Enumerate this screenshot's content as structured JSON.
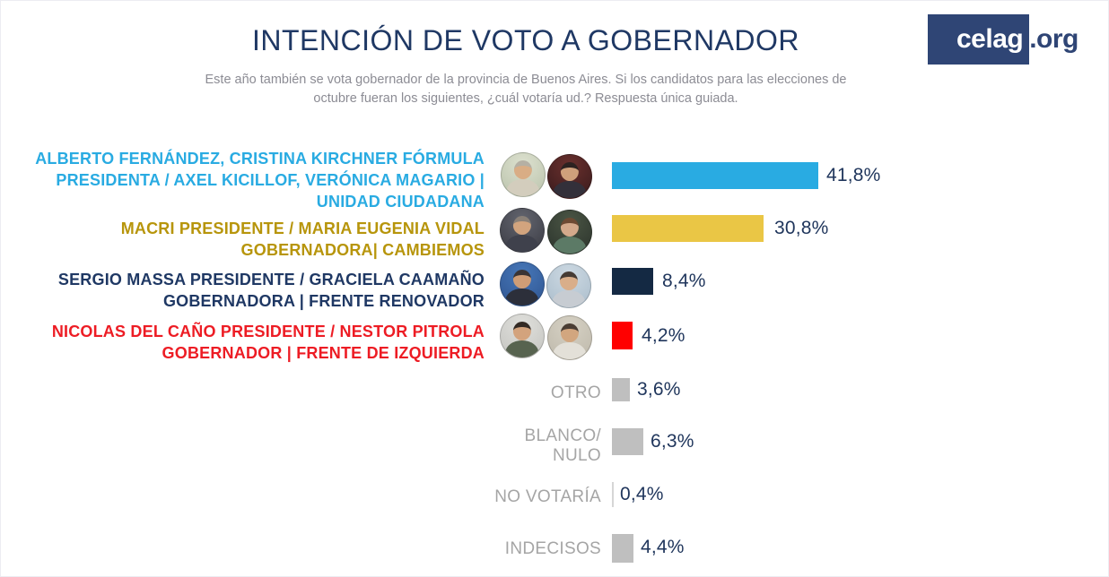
{
  "header": {
    "title": "INTENCIÓN DE VOTO A GOBERNADOR",
    "subtitle_lines": [
      "Este año también se vota gobernador de la provincia de Buenos Aires. Si los candidatos para las elecciones de",
      "octubre fueran los siguientes, ¿cuál votaría ud.? Respuesta única guiada."
    ],
    "logo": {
      "box_text": "celag",
      "suffix": ".org"
    }
  },
  "colors": {
    "title_navy": "#1F3864",
    "subtitle_gray": "#8C8C94",
    "value_navy": "#20365C",
    "gray_label": "#A5A5A5",
    "logo_navy": "#2F4575",
    "bar_blue": "#29ABE2",
    "bar_yellow": "#EAC645",
    "bar_navy": "#142943",
    "bar_red": "#FF0000",
    "bar_gray": "#BFBFBF",
    "bar_gray_light": "#D6D6D6"
  },
  "chart_data": {
    "type": "bar",
    "orientation": "horizontal",
    "title": "INTENCIÓN DE VOTO A GOBERNADOR",
    "unit": "%",
    "xlim": [
      0,
      45
    ],
    "grid": false,
    "legend": "none",
    "categories": [
      "ALBERTO FERNÁNDEZ, CRISTINA KIRCHNER FÓRMULA PRESIDENTA / AXEL KICILLOF, VERÓNICA MAGARIO | UNIDAD CIUDADANA",
      "MACRI PRESIDENTE / MARIA EUGENIA VIDAL GOBERNADORA| CAMBIEMOS",
      "SERGIO MASSA PRESIDENTE / GRACIELA CAAMAÑO GOBERNADORA | FRENTE RENOVADOR",
      "NICOLAS DEL CAÑO PRESIDENTE / NESTOR PITROLA GOBERNADOR | FRENTE DE IZQUIERDA",
      "OTRO",
      "BLANCO/ NULO",
      "NO VOTARÍA",
      "INDECISOS"
    ],
    "values": [
      41.8,
      30.8,
      8.4,
      4.2,
      3.6,
      6.3,
      0.4,
      4.4
    ],
    "value_labels": [
      "41,8%",
      "30,8%",
      "8,4%",
      "4,2%",
      "3,6%",
      "6,3%",
      "0,4%",
      "4,4%"
    ],
    "bar_colors": [
      "#29ABE2",
      "#EAC645",
      "#142943",
      "#FF0000",
      "#BFBFBF",
      "#BFBFBF",
      "#D6D6D6",
      "#BFBFBF"
    ]
  },
  "rows": [
    {
      "id": "fernandez-kicillof",
      "label_lines": [
        "ALBERTO FERNÁNDEZ, CRISTINA KIRCHNER FÓRMULA",
        "PRESIDENTA / AXEL KICILLOF, VERÓNICA MAGARIO |",
        "UNIDAD CIUDADANA"
      ],
      "value": 41.8,
      "pct": "41,8%",
      "bar_color": "#29ABE2"
    },
    {
      "id": "macri-vidal",
      "label_lines": [
        "MACRI PRESIDENTE / MARIA EUGENIA VIDAL",
        "GOBERNADORA| CAMBIEMOS"
      ],
      "value": 30.8,
      "pct": "30,8%",
      "bar_color": "#EAC645"
    },
    {
      "id": "massa-caamano",
      "label_lines": [
        "SERGIO MASSA PRESIDENTE / GRACIELA CAAMAÑO",
        "GOBERNADORA | FRENTE RENOVADOR"
      ],
      "value": 8.4,
      "pct": "8,4%",
      "bar_color": "#142943"
    },
    {
      "id": "delcano-pitrola",
      "label_lines": [
        "NICOLAS DEL CAÑO PRESIDENTE / NESTOR PITROLA",
        "GOBERNADOR | FRENTE DE IZQUIERDA"
      ],
      "value": 4.2,
      "pct": "4,2%",
      "bar_color": "#FF0000"
    },
    {
      "id": "otro",
      "label_lines": [
        "OTRO"
      ],
      "value": 3.6,
      "pct": "3,6%",
      "bar_color": "#BFBFBF"
    },
    {
      "id": "blanco-nulo",
      "label_lines": [
        "BLANCO/",
        "NULO"
      ],
      "value": 6.3,
      "pct": "6,3%",
      "bar_color": "#BFBFBF"
    },
    {
      "id": "no-votaria",
      "label_lines": [
        "NO VOTARÍA"
      ],
      "value": 0.4,
      "pct": "0,4%",
      "bar_color": "#D6D6D6"
    },
    {
      "id": "indecisos",
      "label_lines": [
        "INDECISOS"
      ],
      "value": 4.4,
      "pct": "4,4%",
      "bar_color": "#BFBFBF"
    }
  ]
}
